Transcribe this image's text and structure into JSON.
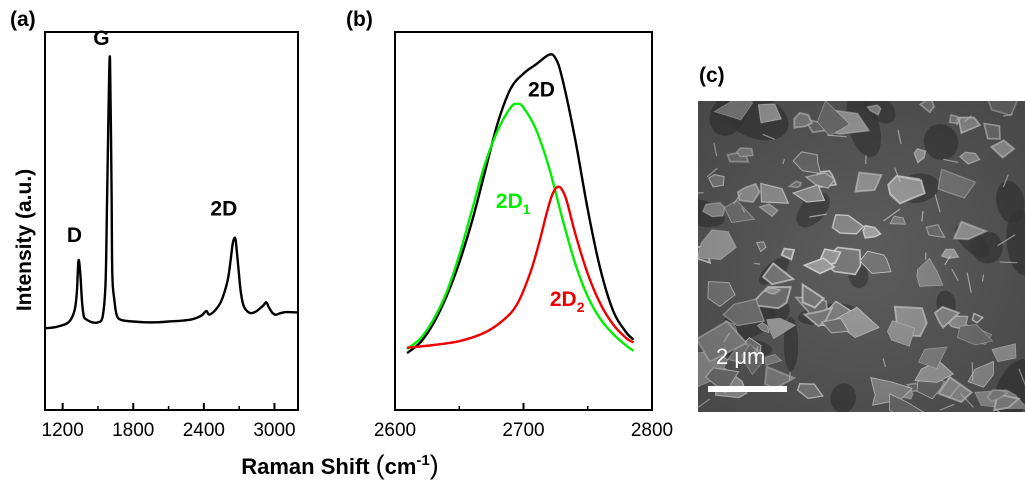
{
  "figure": {
    "xlabel": "Raman Shift",
    "xlabel_unit_open": "(",
    "xlabel_unit_base": "cm",
    "xlabel_unit_exp": "-1",
    "xlabel_unit_close": ")"
  },
  "chart_data": [
    {
      "panel": "(a)",
      "type": "line",
      "xlabel": "Raman Shift (cm-1)",
      "ylabel": "Intensity (a.u.)",
      "xlim": [
        1050,
        3200
      ],
      "ylim": [
        0,
        1.0
      ],
      "xticks": [
        1200,
        1800,
        2400,
        3000
      ],
      "yticks": [],
      "grid": false,
      "series": [
        {
          "color": "#000000",
          "x": [
            1050,
            1150,
            1250,
            1300,
            1320,
            1335,
            1350,
            1365,
            1380,
            1400,
            1450,
            1500,
            1540,
            1565,
            1578,
            1590,
            1602,
            1615,
            1622,
            1640,
            1660,
            1700,
            1800,
            1900,
            2000,
            2100,
            2200,
            2300,
            2380,
            2420,
            2440,
            2460,
            2500,
            2550,
            2600,
            2625,
            2645,
            2660,
            2670,
            2680,
            2695,
            2715,
            2740,
            2790,
            2840,
            2900,
            2930,
            2950,
            2980,
            3010,
            3050,
            3100,
            3200
          ],
          "y": [
            0.216,
            0.22,
            0.232,
            0.262,
            0.31,
            0.395,
            0.36,
            0.284,
            0.248,
            0.24,
            0.232,
            0.232,
            0.248,
            0.34,
            0.56,
            0.79,
            0.93,
            0.6,
            0.36,
            0.29,
            0.25,
            0.238,
            0.234,
            0.232,
            0.232,
            0.234,
            0.236,
            0.24,
            0.25,
            0.262,
            0.253,
            0.254,
            0.265,
            0.29,
            0.34,
            0.39,
            0.44,
            0.455,
            0.45,
            0.42,
            0.37,
            0.31,
            0.274,
            0.257,
            0.26,
            0.275,
            0.285,
            0.273,
            0.258,
            0.252,
            0.256,
            0.259,
            0.258
          ]
        }
      ],
      "annotations": [
        {
          "text": "D",
          "x": 1300,
          "y": 0.445
        },
        {
          "text": "G",
          "x": 1530,
          "y": 0.965
        },
        {
          "text": "2D",
          "x": 2570,
          "y": 0.515
        }
      ]
    },
    {
      "panel": "(b)",
      "type": "line",
      "xlim": [
        2600,
        2800
      ],
      "ylim": [
        0,
        1.0
      ],
      "xticks": [
        2600,
        2700,
        2800
      ],
      "yticks": [],
      "grid": false,
      "series": [
        {
          "name": "2D",
          "color": "#000000",
          "x": [
            2610,
            2620,
            2630,
            2640,
            2650,
            2660,
            2670,
            2680,
            2690,
            2700,
            2710,
            2720,
            2725,
            2730,
            2740,
            2750,
            2760,
            2770,
            2780,
            2785
          ],
          "y": [
            0.152,
            0.18,
            0.23,
            0.3,
            0.39,
            0.5,
            0.63,
            0.76,
            0.85,
            0.89,
            0.915,
            0.94,
            0.93,
            0.88,
            0.72,
            0.53,
            0.37,
            0.26,
            0.205,
            0.188
          ]
        },
        {
          "name": "2D1",
          "color": "#00ee00",
          "x": [
            2610,
            2620,
            2630,
            2640,
            2650,
            2660,
            2670,
            2680,
            2690,
            2695,
            2700,
            2710,
            2720,
            2730,
            2740,
            2750,
            2760,
            2770,
            2780,
            2785
          ],
          "y": [
            0.163,
            0.19,
            0.24,
            0.31,
            0.41,
            0.53,
            0.65,
            0.74,
            0.8,
            0.81,
            0.8,
            0.74,
            0.64,
            0.51,
            0.39,
            0.3,
            0.24,
            0.2,
            0.17,
            0.158
          ]
        },
        {
          "name": "2D2",
          "color": "#ee0000",
          "x": [
            2610,
            2630,
            2650,
            2670,
            2685,
            2695,
            2705,
            2712,
            2718,
            2723,
            2728,
            2733,
            2740,
            2750,
            2760,
            2770,
            2780,
            2785
          ],
          "y": [
            0.165,
            0.172,
            0.182,
            0.205,
            0.24,
            0.28,
            0.36,
            0.44,
            0.52,
            0.575,
            0.59,
            0.56,
            0.47,
            0.36,
            0.28,
            0.225,
            0.19,
            0.18
          ]
        }
      ],
      "annotations": [
        {
          "text": "2D",
          "x": 2714,
          "y": 0.83,
          "color": "#000000"
        },
        {
          "text": "2D",
          "sub": "1",
          "x": 2692,
          "y": 0.535,
          "color": "#00ee00"
        },
        {
          "text": "2D",
          "sub": "2",
          "x": 2734,
          "y": 0.275,
          "color": "#ee0000"
        }
      ]
    }
  ],
  "image_panel": {
    "label": "(c)",
    "scalebar_text": "2 μm",
    "palette": {
      "base": "#5d5d5d",
      "dark": "#3e3e3e",
      "flake": "#8a8a8a",
      "edge": "#d8d8d8",
      "scalebar": "#ffffff"
    }
  }
}
